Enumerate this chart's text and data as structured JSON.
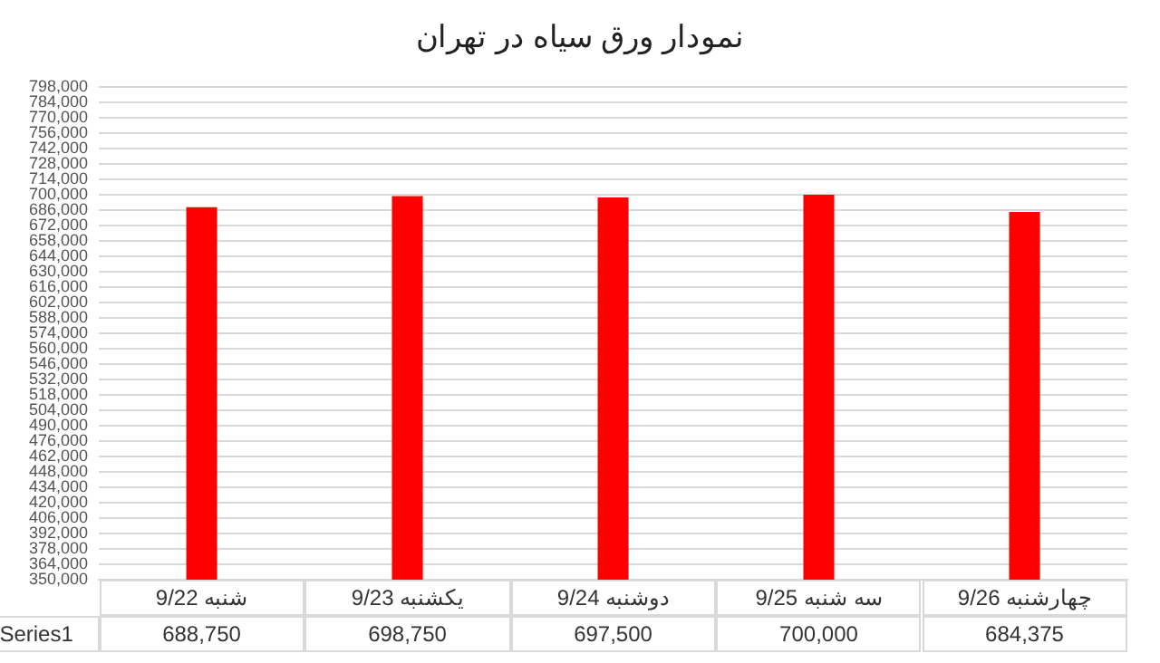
{
  "chart_data": {
    "type": "bar",
    "title": "نمودار ورق سیاه در تهران",
    "categories": [
      "شنبه 9/22",
      "یکشنبه 9/23",
      "دوشنبه 9/24",
      "سه شنبه 9/25",
      "چهارشنبه 9/26"
    ],
    "series": [
      {
        "name": "Series1",
        "color": "#ff0000",
        "values": [
          688750,
          698750,
          697500,
          700000,
          684375
        ],
        "value_labels": [
          "688,750",
          "698,750",
          "697,500",
          "700,000",
          "684,375"
        ]
      }
    ],
    "ylim": [
      350000,
      798000
    ],
    "yticks": [
      {
        "value": 350000,
        "label": "350,000"
      },
      {
        "value": 364000,
        "label": "364,000"
      },
      {
        "value": 378000,
        "label": "378,000"
      },
      {
        "value": 392000,
        "label": "392,000"
      },
      {
        "value": 406000,
        "label": "406,000"
      },
      {
        "value": 420000,
        "label": "420,000"
      },
      {
        "value": 434000,
        "label": "434,000"
      },
      {
        "value": 448000,
        "label": "448,000"
      },
      {
        "value": 462000,
        "label": "462,000"
      },
      {
        "value": 476000,
        "label": "476,000"
      },
      {
        "value": 490000,
        "label": "490,000"
      },
      {
        "value": 504000,
        "label": "504,000"
      },
      {
        "value": 518000,
        "label": "518,000"
      },
      {
        "value": 532000,
        "label": "532,000"
      },
      {
        "value": 546000,
        "label": "546,000"
      },
      {
        "value": 560000,
        "label": "560,000"
      },
      {
        "value": 574000,
        "label": "574,000"
      },
      {
        "value": 588000,
        "label": "588,000"
      },
      {
        "value": 602000,
        "label": "602,000"
      },
      {
        "value": 616000,
        "label": "616,000"
      },
      {
        "value": 630000,
        "label": "630,000"
      },
      {
        "value": 644000,
        "label": "644,000"
      },
      {
        "value": 658000,
        "label": "658,000"
      },
      {
        "value": 672000,
        "label": "672,000"
      },
      {
        "value": 686000,
        "label": "686,000"
      },
      {
        "value": 700000,
        "label": "700,000"
      },
      {
        "value": 714000,
        "label": "714,000"
      },
      {
        "value": 728000,
        "label": "728,000"
      },
      {
        "value": 742000,
        "label": "742,000"
      },
      {
        "value": 756000,
        "label": "756,000"
      },
      {
        "value": 770000,
        "label": "770,000"
      },
      {
        "value": 784000,
        "label": "784,000"
      },
      {
        "value": 798000,
        "label": "798,000"
      }
    ],
    "grid": "y",
    "legend": "bottom"
  }
}
